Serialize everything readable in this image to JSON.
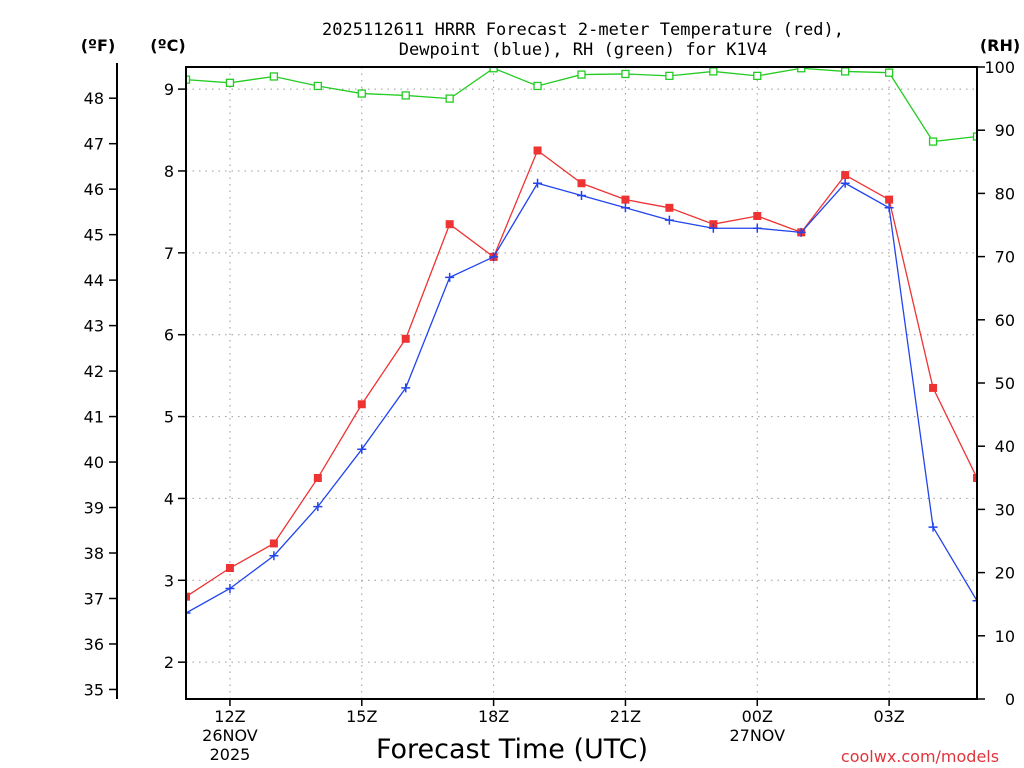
{
  "chart_data": {
    "type": "line",
    "title_line1": "2025112611 HRRR Forecast 2-meter Temperature (red),",
    "title_line2": "Dewpoint (blue), RH (green) for K1V4",
    "unit_f": "(ºF)",
    "unit_c": "(ºC)",
    "unit_rh": "(RH)",
    "xlabel": "Forecast Time (UTC)",
    "credit": "coolwx.com/models",
    "x_hours": [
      11,
      12,
      13,
      14,
      15,
      16,
      17,
      18,
      19,
      20,
      21,
      22,
      23,
      24,
      25,
      26,
      27,
      28,
      29
    ],
    "x_range": [
      11,
      29
    ],
    "c_range": [
      1.55,
      9.27
    ],
    "rh_range": [
      0,
      100
    ],
    "c_ticks": [
      2,
      3,
      4,
      5,
      6,
      7,
      8,
      9
    ],
    "f_ticks": [
      35,
      36,
      37,
      38,
      39,
      40,
      41,
      42,
      43,
      44,
      45,
      46,
      47,
      48
    ],
    "rh_ticks": [
      0,
      10,
      20,
      30,
      40,
      50,
      60,
      70,
      80,
      90,
      100
    ],
    "x_ticks": [
      {
        "hour": 12,
        "label": "12Z",
        "date": "26NOV",
        "year": "2025"
      },
      {
        "hour": 15,
        "label": "15Z",
        "date": "",
        "year": ""
      },
      {
        "hour": 18,
        "label": "18Z",
        "date": "",
        "year": ""
      },
      {
        "hour": 21,
        "label": "21Z",
        "date": "",
        "year": ""
      },
      {
        "hour": 24,
        "label": "00Z",
        "date": "27NOV",
        "year": ""
      },
      {
        "hour": 27,
        "label": "03Z",
        "date": "",
        "year": ""
      }
    ],
    "series": [
      {
        "name": "Temperature",
        "axis": "c",
        "color": "#ee3333",
        "marker": "square-filled",
        "values": [
          2.8,
          3.15,
          3.45,
          4.25,
          5.15,
          5.95,
          7.35,
          6.95,
          8.25,
          7.85,
          7.65,
          7.55,
          7.35,
          7.45,
          7.25,
          7.95,
          7.65,
          5.35,
          4.25
        ]
      },
      {
        "name": "Dewpoint",
        "axis": "c",
        "color": "#2244ee",
        "marker": "plus",
        "values": [
          2.6,
          2.9,
          3.3,
          3.9,
          4.6,
          5.35,
          6.7,
          6.95,
          7.85,
          7.7,
          7.55,
          7.4,
          7.3,
          7.3,
          7.25,
          7.85,
          7.55,
          3.65,
          2.75
        ]
      },
      {
        "name": "RH",
        "axis": "rh",
        "color": "#22cc22",
        "marker": "square-open",
        "values": [
          98,
          97.5,
          98.5,
          97,
          95.8,
          95.5,
          95,
          99.8,
          97,
          98.8,
          98.9,
          98.6,
          99.3,
          98.6,
          99.8,
          99.3,
          99.1,
          88.2,
          89
        ]
      }
    ]
  }
}
